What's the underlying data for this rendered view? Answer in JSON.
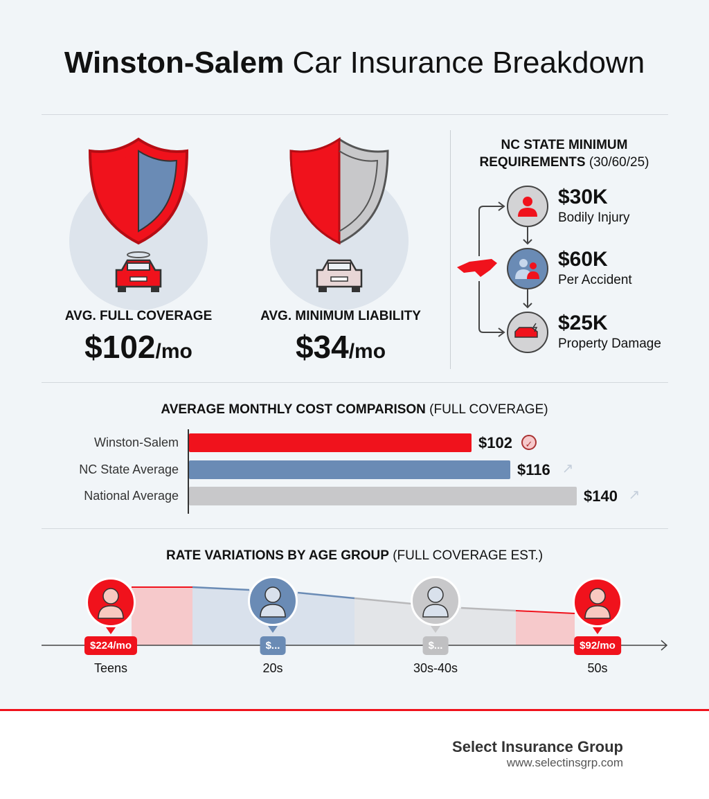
{
  "title": {
    "bold": "Winston-Salem",
    "rest": " Car Insurance Breakdown"
  },
  "coverage": [
    {
      "label": "AVG. FULL COVERAGE",
      "amount": "$102",
      "unit": "/mo"
    },
    {
      "label": "AVG. MINIMUM LIABILITY",
      "amount": "$34",
      "unit": "/mo"
    }
  ],
  "requirements": {
    "title_bold": "NC STATE MINIMUM REQUIREMENTS",
    "title_rest": " (30/60/25)",
    "items": [
      {
        "amount": "$30K",
        "label": "Bodily Injury",
        "icon": "person-icon"
      },
      {
        "amount": "$60K",
        "label": "Per Accident",
        "icon": "people-icon"
      },
      {
        "amount": "$25K",
        "label": "Property Damage",
        "icon": "car-crash-icon"
      }
    ]
  },
  "colors": {
    "red": "#f0121c",
    "blue": "#6a8bb5",
    "gray": "#c8c8ca",
    "dark": "#111111"
  },
  "chart_data": [
    {
      "type": "bar",
      "orientation": "horizontal",
      "title_bold": "AVERAGE MONTHLY COST COMPARISON",
      "title_rest": " (FULL COVERAGE)",
      "categories": [
        "Winston-Salem",
        "NC State Average",
        "National Average"
      ],
      "values": [
        102,
        116,
        140
      ],
      "value_labels": [
        "$102",
        "$116",
        "$140"
      ],
      "colors": [
        "#f0121c",
        "#6a8bb5",
        "#c8c8ca"
      ],
      "xlim": [
        0,
        150
      ],
      "grid": false
    },
    {
      "type": "area",
      "title_bold": "RATE VARIATIONS BY AGE GROUP",
      "title_rest": " (FULL COVERAGE EST.)",
      "categories": [
        "Teens",
        "20s",
        "30s-40s",
        "50s"
      ],
      "value_labels": [
        "$224/mo",
        "$...",
        "$...",
        "$92/mo"
      ],
      "values": [
        224,
        null,
        null,
        92
      ],
      "colors": [
        "#f0121c",
        "#6a8bb5",
        "#b8b8ba",
        "#f0121c"
      ]
    }
  ],
  "footer": {
    "brand": "Select Insurance Group",
    "url": "www.selectinsgrp.com"
  }
}
